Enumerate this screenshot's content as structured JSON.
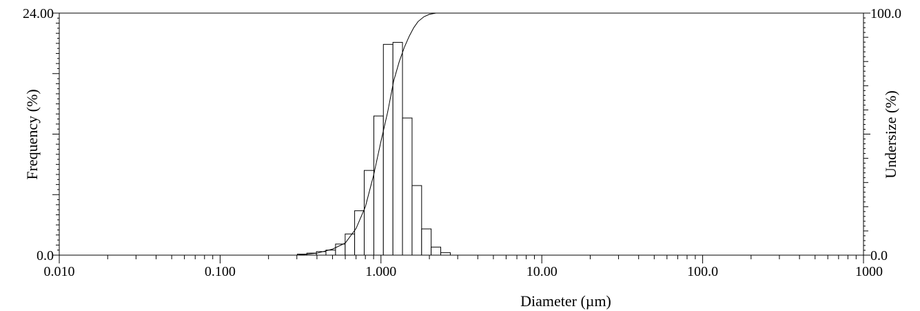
{
  "chart_data": {
    "type": "bar",
    "title": "",
    "xlabel": "Diameter (µm)",
    "ylabel": "Frequency (%)",
    "y2label": "Undersize (%)",
    "xscale": "log",
    "xlim": [
      0.01,
      1000
    ],
    "ylim": [
      0,
      24
    ],
    "y2lim": [
      0,
      100
    ],
    "grid": false,
    "x_tick_labels": [
      {
        "value": 0.01,
        "label": "0.010"
      },
      {
        "value": 0.1,
        "label": "0.100"
      },
      {
        "value": 1,
        "label": "1.000"
      },
      {
        "value": 10,
        "label": "10.00"
      },
      {
        "value": 100,
        "label": "100.0"
      },
      {
        "value": 1000,
        "label": "1000"
      }
    ],
    "y_tick_labels": [
      {
        "value": 0,
        "label": "0.0"
      },
      {
        "value": 24,
        "label": "24.00"
      }
    ],
    "y2_tick_labels": [
      {
        "value": 0,
        "label": "0.0"
      },
      {
        "value": 100,
        "label": "100.0"
      }
    ],
    "frequency_bins": {
      "bin_edges": [
        0.302,
        0.346,
        0.397,
        0.455,
        0.522,
        0.599,
        0.686,
        0.787,
        0.903,
        1.035,
        1.187,
        1.361,
        1.561,
        1.79,
        2.052,
        2.353,
        2.699
      ],
      "values": [
        0.1,
        0.2,
        0.35,
        0.5,
        1.1,
        2.1,
        4.4,
        8.4,
        13.8,
        20.9,
        21.1,
        13.6,
        6.9,
        2.6,
        0.8,
        0.25
      ]
    },
    "undersize_curve": {
      "x": [
        0.3,
        0.4,
        0.5,
        0.6,
        0.7,
        0.8,
        0.9,
        1.0,
        1.1,
        1.2,
        1.3,
        1.4,
        1.5,
        1.6,
        1.7,
        1.85,
        2.0,
        2.2,
        2.5,
        1000
      ],
      "y": [
        0.0,
        0.8,
        2.5,
        5.0,
        11.0,
        20.0,
        33.0,
        47.0,
        59.0,
        72.0,
        80.0,
        86.0,
        90.5,
        94.0,
        96.5,
        98.5,
        99.5,
        100.0,
        100.0,
        100.0
      ]
    }
  }
}
